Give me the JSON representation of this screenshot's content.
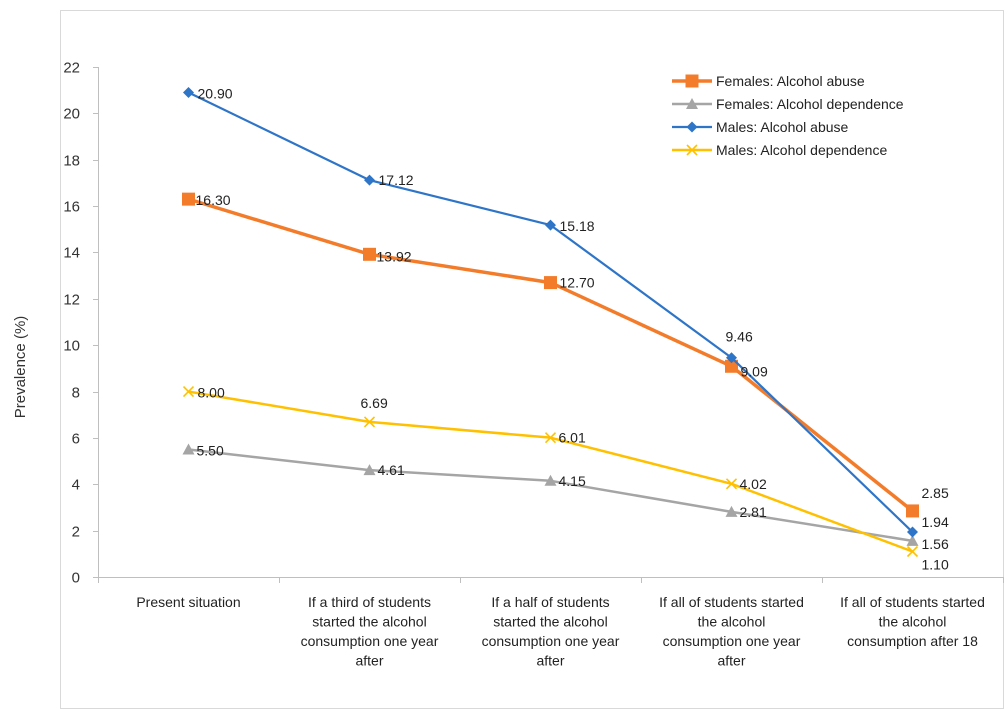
{
  "chart_data": {
    "type": "line",
    "title": "",
    "xlabel": "",
    "ylabel": "Prevalence (%)",
    "ylim": [
      0,
      22
    ],
    "yticks": [
      0,
      2,
      4,
      6,
      8,
      10,
      12,
      14,
      16,
      18,
      20,
      22
    ],
    "grid": false,
    "legend": "top-right",
    "categories": [
      [
        "Present situation"
      ],
      [
        "If  a third of students",
        "started the alcohol",
        "consumption one year",
        "after"
      ],
      [
        "If  a half of students",
        "started the alcohol",
        "consumption one year",
        "after"
      ],
      [
        "If  all of students started",
        "the alcohol",
        "consumption one year",
        "after"
      ],
      [
        "If  all of students started",
        "the alcohol",
        "consumption after 18"
      ]
    ],
    "series": [
      {
        "name": "Females: Alcohol abuse",
        "values": [
          16.3,
          13.92,
          12.7,
          9.09,
          2.85
        ],
        "labels": [
          "16.30",
          "13.92",
          "12.70",
          "9.09",
          "2.85"
        ],
        "color": "#F37C2B",
        "marker": "square"
      },
      {
        "name": "Females: Alcohol dependence",
        "values": [
          5.5,
          4.61,
          4.15,
          2.81,
          1.56
        ],
        "labels": [
          "5.50",
          "4.61",
          "4.15",
          "2.81",
          "1.56"
        ],
        "color": "#A5A5A5",
        "marker": "triangle"
      },
      {
        "name": "Males: Alcohol abuse",
        "values": [
          20.9,
          17.12,
          15.18,
          9.46,
          1.94
        ],
        "labels": [
          "20.90",
          "17.12",
          "15.18",
          "9.46",
          "1.94"
        ],
        "color": "#2E75C8",
        "marker": "diamond"
      },
      {
        "name": "Males: Alcohol dependence",
        "values": [
          8.0,
          6.69,
          6.01,
          4.02,
          1.1
        ],
        "labels": [
          "8.00",
          "6.69",
          "6.01",
          "4.02",
          "1.10"
        ],
        "color": "#FFC000",
        "marker": "x"
      }
    ]
  }
}
